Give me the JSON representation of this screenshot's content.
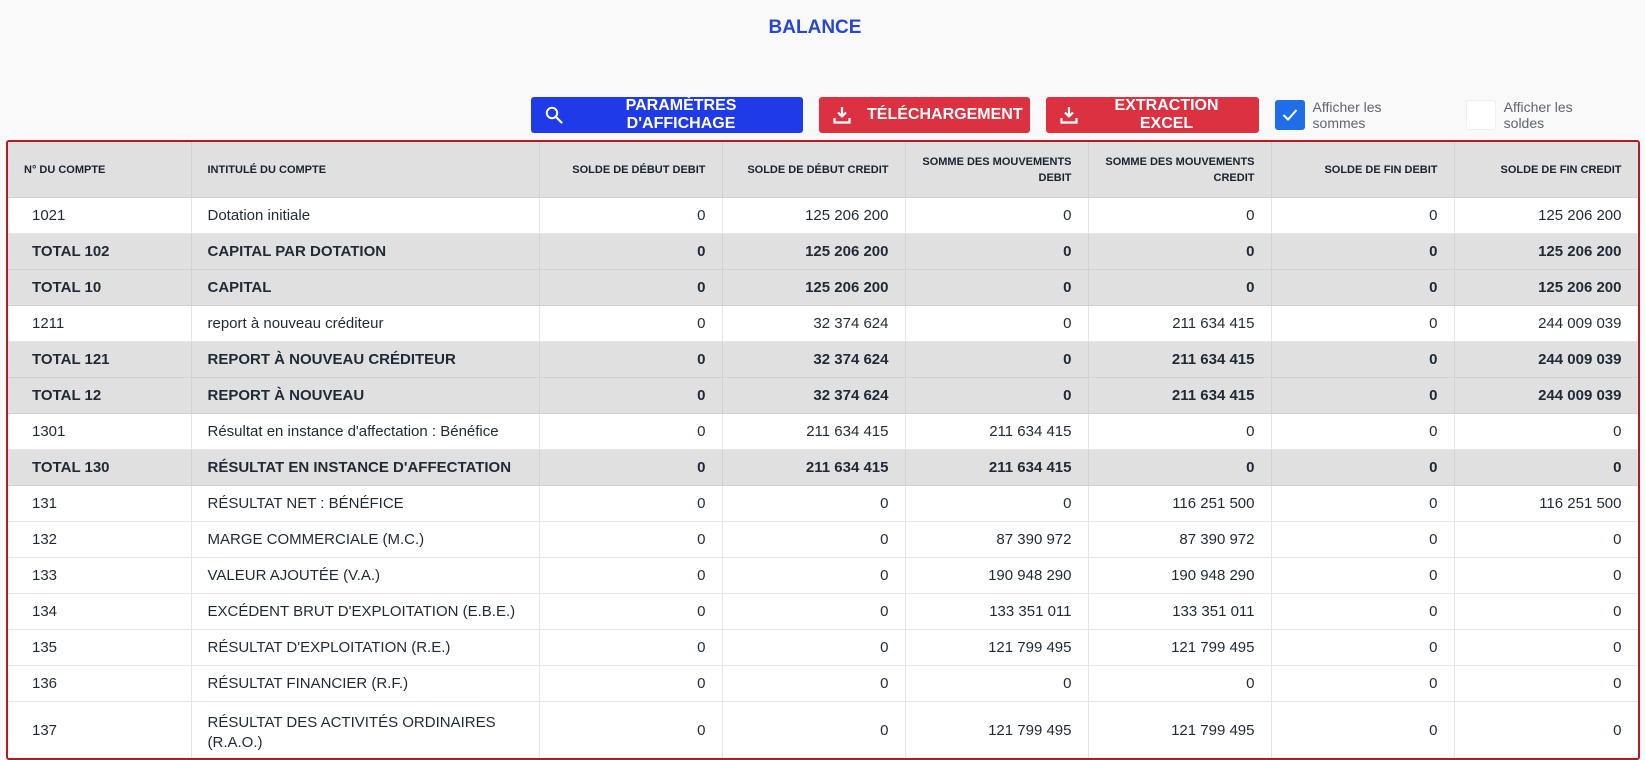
{
  "page": {
    "title": "BALANCE"
  },
  "toolbar": {
    "display_params": "PARAMÈTRES D'AFFICHAGE",
    "download": "TÉLÉCHARGEMENT",
    "excel": "EXTRACTION EXCEL",
    "show_sums": {
      "label": "Afficher les sommes",
      "checked": true
    },
    "show_balances": {
      "label": "Afficher les soldes",
      "checked": false
    }
  },
  "colors": {
    "accent_blue": "#1f3be8",
    "danger_red": "#db3141",
    "border_red": "#b31b23",
    "title_blue": "#2746d6"
  },
  "icons": {
    "display_params": "search-icon",
    "download": "download-icon",
    "excel": "download-icon",
    "checkbox": "check-icon"
  },
  "table": {
    "headers": [
      "N° DU COMPTE",
      "INTITULÉ DU COMPTE",
      "SOLDE DE DÉBUT DEBIT",
      "SOLDE DE DÉBUT CREDIT",
      "SOMME DES MOUVEMENTS DEBIT",
      "SOMME DES MOUVEMENTS CREDIT",
      "SOLDE DE FIN DEBIT",
      "SOLDE DE FIN CREDIT"
    ],
    "rows": [
      {
        "total": false,
        "cells": [
          "1021",
          "Dotation initiale",
          "0",
          "125 206 200",
          "0",
          "0",
          "0",
          "125 206 200"
        ]
      },
      {
        "total": true,
        "cells": [
          "TOTAL 102",
          "CAPITAL PAR DOTATION",
          "0",
          "125 206 200",
          "0",
          "0",
          "0",
          "125 206 200"
        ]
      },
      {
        "total": true,
        "cells": [
          "TOTAL 10",
          "CAPITAL",
          "0",
          "125 206 200",
          "0",
          "0",
          "0",
          "125 206 200"
        ]
      },
      {
        "total": false,
        "cells": [
          "1211",
          "report à nouveau créditeur",
          "0",
          "32 374 624",
          "0",
          "211 634 415",
          "0",
          "244 009 039"
        ]
      },
      {
        "total": true,
        "cells": [
          "TOTAL 121",
          "REPORT À NOUVEAU CRÉDITEUR",
          "0",
          "32 374 624",
          "0",
          "211 634 415",
          "0",
          "244 009 039"
        ]
      },
      {
        "total": true,
        "cells": [
          "TOTAL 12",
          "REPORT À NOUVEAU",
          "0",
          "32 374 624",
          "0",
          "211 634 415",
          "0",
          "244 009 039"
        ]
      },
      {
        "total": false,
        "cells": [
          "1301",
          "Résultat en instance d'affectation : Bénéfice",
          "0",
          "211 634 415",
          "211 634 415",
          "0",
          "0",
          "0"
        ]
      },
      {
        "total": true,
        "cells": [
          "TOTAL 130",
          "RÉSULTAT EN INSTANCE D'AFFECTATION",
          "0",
          "211 634 415",
          "211 634 415",
          "0",
          "0",
          "0"
        ]
      },
      {
        "total": false,
        "cells": [
          "131",
          "RÉSULTAT NET : BÉNÉFICE",
          "0",
          "0",
          "0",
          "116 251 500",
          "0",
          "116 251 500"
        ]
      },
      {
        "total": false,
        "cells": [
          "132",
          "MARGE COMMERCIALE (M.C.)",
          "0",
          "0",
          "87 390 972",
          "87 390 972",
          "0",
          "0"
        ]
      },
      {
        "total": false,
        "cells": [
          "133",
          "VALEUR AJOUTÉE (V.A.)",
          "0",
          "0",
          "190 948 290",
          "190 948 290",
          "0",
          "0"
        ]
      },
      {
        "total": false,
        "cells": [
          "134",
          "EXCÉDENT BRUT D'EXPLOITATION (E.B.E.)",
          "0",
          "0",
          "133 351 011",
          "133 351 011",
          "0",
          "0"
        ]
      },
      {
        "total": false,
        "cells": [
          "135",
          "RÉSULTAT D'EXPLOITATION (R.E.)",
          "0",
          "0",
          "121 799 495",
          "121 799 495",
          "0",
          "0"
        ]
      },
      {
        "total": false,
        "cells": [
          "136",
          "RÉSULTAT FINANCIER (R.F.)",
          "0",
          "0",
          "0",
          "0",
          "0",
          "0"
        ]
      },
      {
        "total": false,
        "cells": [
          "137",
          "RÉSULTAT DES ACTIVITÉS ORDINAIRES (R.A.O.)",
          "0",
          "0",
          "121 799 495",
          "121 799 495",
          "0",
          "0"
        ]
      }
    ]
  }
}
